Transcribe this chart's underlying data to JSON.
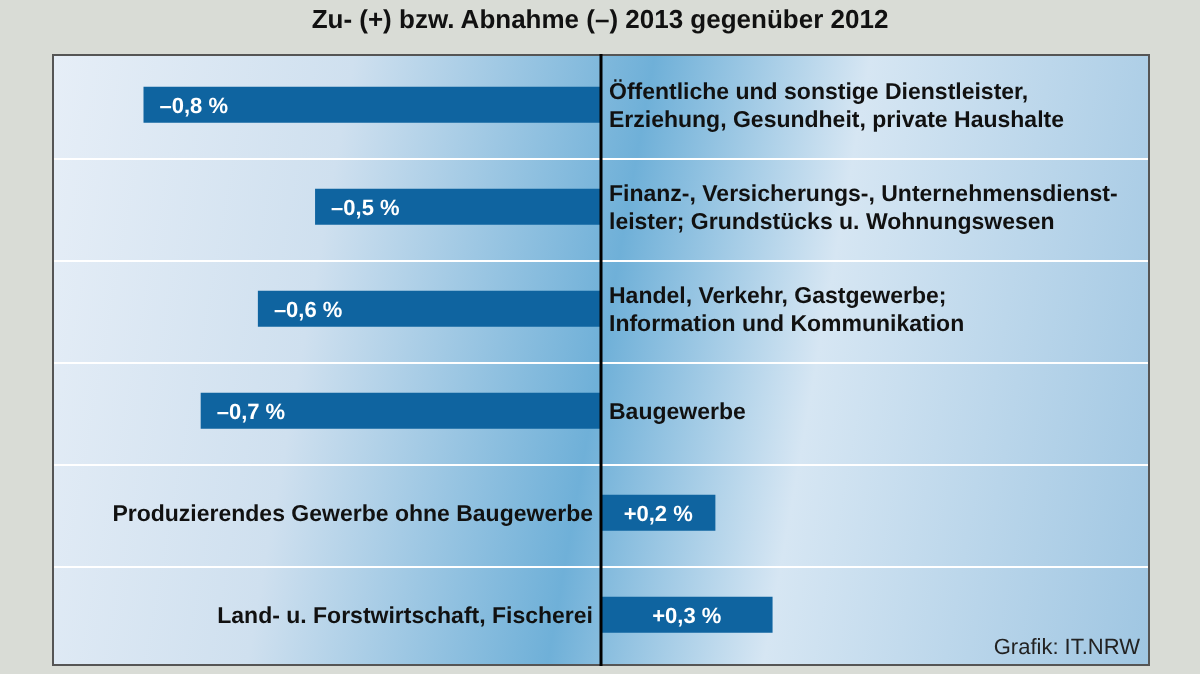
{
  "chart_data": {
    "type": "bar",
    "orientation": "horizontal",
    "title": "Zu- (+) bzw. Abnahme (–) 2013 gegenüber 2012",
    "categories": [
      "Öffentliche und sonstige Dienstleister,\nErziehung, Gesundheit, private Haushalte",
      "Finanz-, Versicherungs-, Unternehmensdienst-\nleister; Grundstücks u. Wohnungswesen",
      "Handel, Verkehr, Gastgewerbe;\nInformation und Kommunikation",
      "Baugewerbe",
      "Produzierendes Gewerbe ohne Baugewerbe",
      "Land- u. Forstwirtschaft, Fischerei"
    ],
    "values": [
      -0.8,
      -0.5,
      -0.6,
      -0.7,
      0.2,
      0.3
    ],
    "value_labels": [
      "–0,8 %",
      "–0,5 %",
      "–0,6 %",
      "–0,7 %",
      "+0,2 %",
      "+0,3 %"
    ],
    "color": "#0f64a0",
    "xlim": [
      -0.96,
      0.96
    ],
    "tick_labels": false,
    "annotations": [
      "Grafik: IT.NRW"
    ]
  }
}
